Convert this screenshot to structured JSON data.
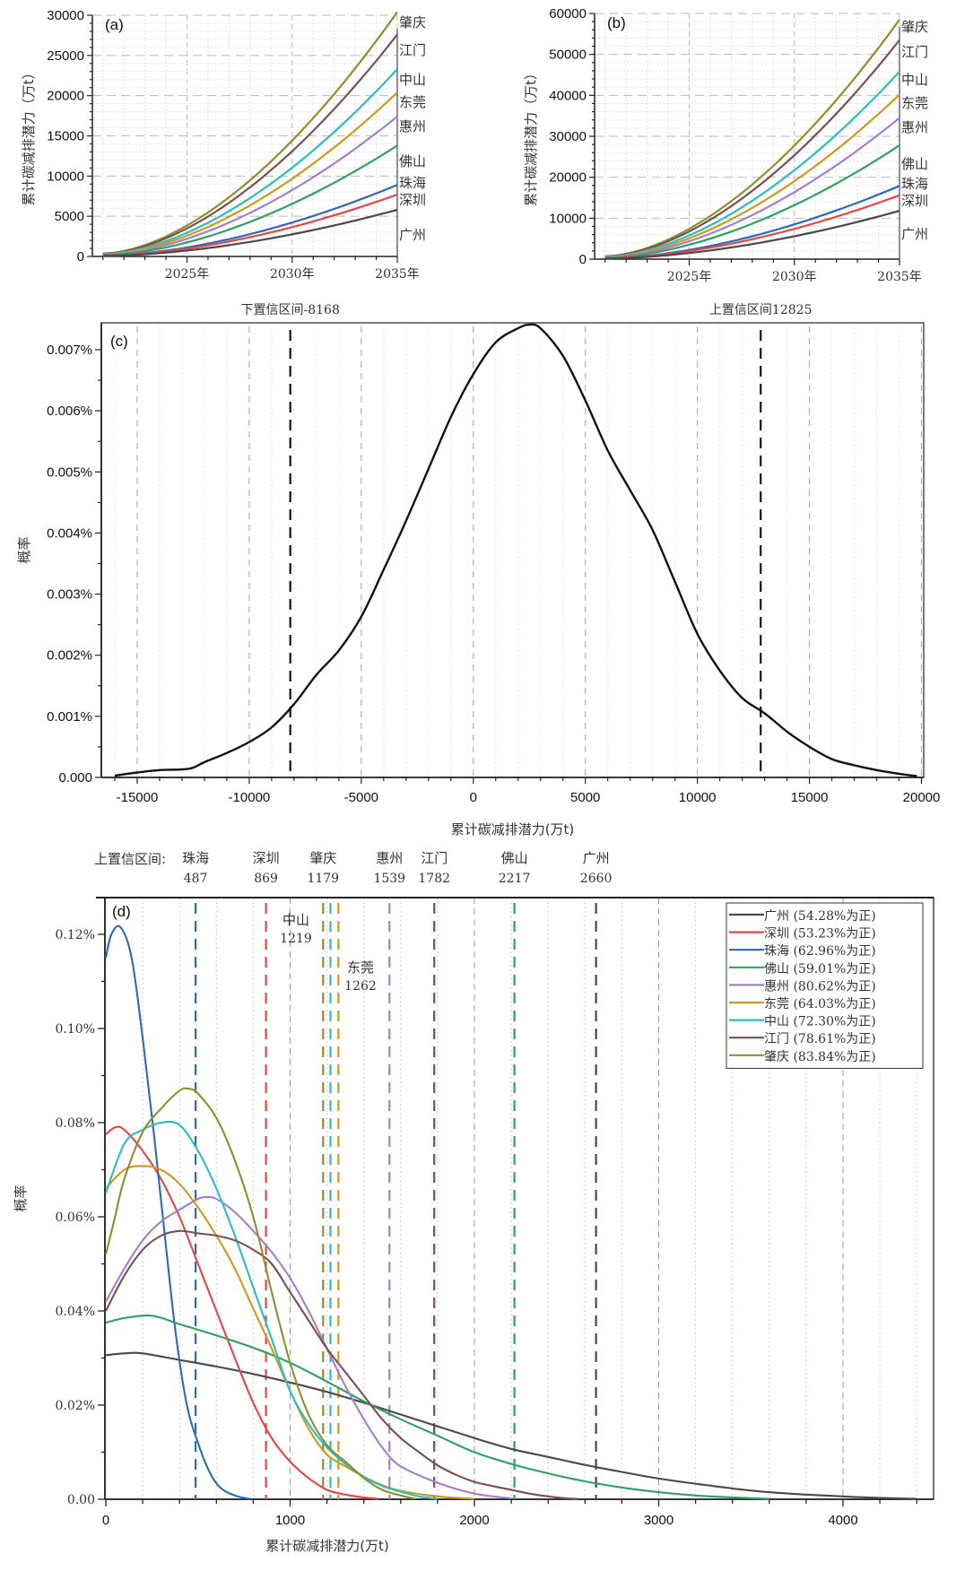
{
  "chart_data": [
    {
      "panel": "a",
      "type": "line",
      "panel_label": "(a)",
      "ylabel": "累计碳减排潜力（万t）",
      "xlabel": "",
      "x_ticks": [
        "2025年",
        "2030年",
        "2035年"
      ],
      "y_ticks": [
        "0",
        "5000",
        "10000",
        "15000",
        "20000",
        "25000",
        "30000"
      ],
      "xlim": [
        2020.5,
        2035
      ],
      "ylim": [
        0,
        30000
      ],
      "x_start": 2021,
      "x_end": 2035,
      "grid": true,
      "series": [
        {
          "name": "肇庆",
          "color": "#8e8f2b",
          "end_value": 30400
        },
        {
          "name": "江门",
          "color": "#7a5050",
          "end_value": 27600
        },
        {
          "name": "中山",
          "color": "#2bbdc0",
          "end_value": 23300
        },
        {
          "name": "东莞",
          "color": "#cf9a1c",
          "end_value": 20400
        },
        {
          "name": "惠州",
          "color": "#a57fcb",
          "end_value": 17400
        },
        {
          "name": "佛山",
          "color": "#2ea25e",
          "end_value": 13800
        },
        {
          "name": "珠海",
          "color": "#2d68bd",
          "end_value": 8900
        },
        {
          "name": "深圳",
          "color": "#e84545",
          "end_value": 7700
        },
        {
          "name": "广州",
          "color": "#4a4a4a",
          "end_value": 5800
        }
      ]
    },
    {
      "panel": "b",
      "type": "line",
      "panel_label": "(b)",
      "ylabel": "累计碳减排潜力（万t）",
      "xlabel": "",
      "x_ticks": [
        "2025年",
        "2030年",
        "2035年"
      ],
      "y_ticks": [
        "0",
        "10000",
        "20000",
        "30000",
        "40000",
        "50000",
        "60000"
      ],
      "xlim": [
        2020.5,
        2035
      ],
      "ylim": [
        0,
        60000
      ],
      "x_start": 2021,
      "x_end": 2035,
      "grid": true,
      "series": [
        {
          "name": "肇庆",
          "color": "#8e8f2b",
          "end_value": 58500
        },
        {
          "name": "江门",
          "color": "#7a5050",
          "end_value": 53500
        },
        {
          "name": "中山",
          "color": "#2bbdc0",
          "end_value": 45800
        },
        {
          "name": "东莞",
          "color": "#cf9a1c",
          "end_value": 40200
        },
        {
          "name": "惠州",
          "color": "#a57fcb",
          "end_value": 34500
        },
        {
          "name": "佛山",
          "color": "#2ea25e",
          "end_value": 27800
        },
        {
          "name": "珠海",
          "color": "#2d68bd",
          "end_value": 17900
        },
        {
          "name": "深圳",
          "color": "#e84545",
          "end_value": 15600
        },
        {
          "name": "广州",
          "color": "#4a4a4a",
          "end_value": 11800
        }
      ]
    },
    {
      "panel": "c",
      "type": "line",
      "panel_label": "(c)",
      "xlabel": "累计碳减排潜力(万t)",
      "ylabel": "概率",
      "x_ticks": [
        "-15000",
        "-10000",
        "-5000",
        "0",
        "5000",
        "10000",
        "15000",
        "20000"
      ],
      "y_ticks": [
        "0.000",
        "0.001%",
        "0.002%",
        "0.003%",
        "0.004%",
        "0.005%",
        "0.006%",
        "0.007%"
      ],
      "xlim": [
        -16500,
        20500
      ],
      "ylim": [
        0,
        0.00743
      ],
      "grid": true,
      "annotations": [
        {
          "label": "下置信区间-8168",
          "x": -8168
        },
        {
          "label": "上置信区间12825",
          "x": 12825
        }
      ],
      "series": [
        {
          "name": "density",
          "color": "#111111",
          "x": [
            -16000,
            -15000,
            -14000,
            -13000,
            -12500,
            -12000,
            -11000,
            -10000,
            -9000,
            -8000,
            -7000,
            -6000,
            -5000,
            -4000,
            -3000,
            -2000,
            -1000,
            0,
            1000,
            2000,
            2500,
            3000,
            4000,
            5000,
            6000,
            7000,
            8000,
            9000,
            10000,
            11000,
            12000,
            13000,
            14000,
            15000,
            16000,
            17000,
            18000,
            19000,
            19800
          ],
          "y": [
            3e-05,
            8e-05,
            0.00012,
            0.00013,
            0.00016,
            0.00025,
            0.0004,
            0.00058,
            0.00082,
            0.0012,
            0.00168,
            0.00208,
            0.00263,
            0.0034,
            0.0042,
            0.00505,
            0.0059,
            0.0066,
            0.00712,
            0.00735,
            0.00741,
            0.00735,
            0.0069,
            0.00617,
            0.00535,
            0.0047,
            0.00405,
            0.0032,
            0.00235,
            0.00175,
            0.0013,
            0.00105,
            0.00075,
            0.0005,
            0.0003,
            0.0002,
            0.00012,
            6e-05,
            2e-05
          ]
        }
      ]
    },
    {
      "panel": "d",
      "type": "line",
      "panel_label": "(d)",
      "xlabel": "累计碳减排潜力(万t)",
      "ylabel": "概率",
      "x_ticks": [
        "0",
        "1000",
        "2000",
        "3000",
        "4000"
      ],
      "y_ticks": [
        "0.00",
        "0.02%",
        "0.04%",
        "0.06%",
        "0.08%",
        "0.10%",
        "0.12%"
      ],
      "xlim": [
        0,
        4800
      ],
      "ylim": [
        0,
        0.1305
      ],
      "grid": true,
      "ci_header": "上置信区间:",
      "legend_position": "top-right",
      "upper_ci": [
        {
          "name": "珠海",
          "value": 487,
          "color": "#2d68bd"
        },
        {
          "name": "深圳",
          "value": 869,
          "color": "#e84545"
        },
        {
          "name": "肇庆",
          "value": 1179,
          "color": "#8e8f2b"
        },
        {
          "name": "中山",
          "value": 1219,
          "color": "#2bbdc0"
        },
        {
          "name": "东莞",
          "value": 1262,
          "color": "#cf9a1c"
        },
        {
          "name": "惠州",
          "value": 1539,
          "color": "#a57fcb"
        },
        {
          "name": "江门",
          "value": 1782,
          "color": "#7a5050"
        },
        {
          "name": "佛山",
          "value": 2217,
          "color": "#2ea25e"
        },
        {
          "name": "广州",
          "value": 2660,
          "color": "#4a4a4a"
        }
      ],
      "series": [
        {
          "name": "广州",
          "legend": "广州 (54.28%为正)",
          "color": "#4a4a4a",
          "x": [
            0,
            100,
            200,
            400,
            600,
            800,
            1000,
            1200,
            1400,
            1600,
            1800,
            2000,
            2200,
            2400,
            2600,
            2800,
            3000,
            3200,
            3400,
            3600,
            3800,
            4000,
            4200,
            4400
          ],
          "y": [
            0.0306,
            0.031,
            0.031,
            0.0296,
            0.0282,
            0.0266,
            0.0248,
            0.0228,
            0.0205,
            0.018,
            0.0155,
            0.013,
            0.0107,
            0.009,
            0.0073,
            0.0058,
            0.0044,
            0.0033,
            0.0023,
            0.0015,
            0.001,
            0.0006,
            0.0003,
            0.0001
          ]
        },
        {
          "name": "深圳",
          "legend": "深圳 (53.23%为正)",
          "color": "#e84545",
          "x": [
            0,
            50,
            100,
            200,
            300,
            400,
            500,
            600,
            700,
            800,
            900,
            1000,
            1100,
            1200,
            1300,
            1400,
            1480
          ],
          "y": [
            0.0775,
            0.079,
            0.0785,
            0.074,
            0.068,
            0.06,
            0.05,
            0.04,
            0.03,
            0.0205,
            0.013,
            0.008,
            0.0045,
            0.002,
            0.001,
            0.0004,
            0.0001
          ]
        },
        {
          "name": "珠海",
          "legend": "珠海 (62.96%为正)",
          "color": "#2d68bd",
          "x": [
            0,
            30,
            80,
            140,
            200,
            260,
            320,
            380,
            440,
            500,
            560,
            620,
            700,
            780
          ],
          "y": [
            0.115,
            0.12,
            0.1215,
            0.115,
            0.098,
            0.078,
            0.056,
            0.035,
            0.02,
            0.012,
            0.006,
            0.0025,
            0.0008,
            0.0001
          ]
        },
        {
          "name": "佛山",
          "legend": "佛山 (59.01%为正)",
          "color": "#2ea25e",
          "x": [
            0,
            100,
            250,
            400,
            600,
            800,
            1000,
            1200,
            1400,
            1600,
            1800,
            2000,
            2200,
            2400,
            2600,
            2800,
            3000,
            3200,
            3400,
            3600
          ],
          "y": [
            0.0375,
            0.0385,
            0.039,
            0.0372,
            0.0348,
            0.0322,
            0.029,
            0.025,
            0.0208,
            0.017,
            0.0135,
            0.01,
            0.0075,
            0.0055,
            0.0038,
            0.0025,
            0.0015,
            0.0008,
            0.0004,
            0.0001
          ]
        },
        {
          "name": "惠州",
          "legend": "惠州 (80.62%为正)",
          "color": "#a57fcb",
          "x": [
            0,
            100,
            200,
            300,
            400,
            500,
            550,
            600,
            700,
            800,
            900,
            1000,
            1100,
            1200,
            1300,
            1400,
            1500,
            1600,
            1800,
            2000,
            2200
          ],
          "y": [
            0.042,
            0.049,
            0.055,
            0.059,
            0.0615,
            0.0638,
            0.0642,
            0.0638,
            0.061,
            0.057,
            0.0525,
            0.047,
            0.04,
            0.032,
            0.024,
            0.017,
            0.011,
            0.007,
            0.0035,
            0.0012,
            0.0002
          ]
        },
        {
          "name": "东莞",
          "legend": "东莞 (64.03%为正)",
          "color": "#cf9a1c",
          "x": [
            0,
            100,
            200,
            300,
            400,
            500,
            600,
            700,
            800,
            900,
            1000,
            1100,
            1200,
            1300,
            1400,
            1500,
            1600,
            1800,
            2000
          ],
          "y": [
            0.066,
            0.07,
            0.0708,
            0.07,
            0.067,
            0.062,
            0.056,
            0.049,
            0.0405,
            0.032,
            0.023,
            0.015,
            0.0095,
            0.007,
            0.0048,
            0.003,
            0.0018,
            0.0006,
            0.0001
          ]
        },
        {
          "name": "中山",
          "legend": "中山 (72.30%为正)",
          "color": "#2bbdc0",
          "x": [
            0,
            100,
            200,
            300,
            400,
            500,
            600,
            700,
            800,
            900,
            1000,
            1100,
            1200,
            1300,
            1400,
            1500,
            1600,
            1700,
            1800
          ],
          "y": [
            0.065,
            0.0755,
            0.0785,
            0.08,
            0.0795,
            0.074,
            0.066,
            0.056,
            0.045,
            0.034,
            0.023,
            0.016,
            0.011,
            0.0075,
            0.0048,
            0.0028,
            0.0016,
            0.0006,
            0.0001
          ]
        },
        {
          "name": "江门",
          "legend": "江门 (78.61%为正)",
          "color": "#7a5050",
          "x": [
            0,
            100,
            200,
            300,
            400,
            500,
            600,
            700,
            800,
            900,
            1000,
            1100,
            1200,
            1300,
            1400,
            1500,
            1600,
            1700,
            1800,
            1900,
            2000,
            2100,
            2200,
            2300,
            2400,
            2500,
            2560
          ],
          "y": [
            0.04,
            0.0475,
            0.053,
            0.056,
            0.057,
            0.0565,
            0.056,
            0.055,
            0.053,
            0.05,
            0.044,
            0.038,
            0.032,
            0.027,
            0.022,
            0.017,
            0.013,
            0.01,
            0.0072,
            0.0052,
            0.0037,
            0.0028,
            0.002,
            0.0012,
            0.0006,
            0.0002,
            0.0001
          ]
        },
        {
          "name": "肇庆",
          "legend": "肇庆 (83.84%为正)",
          "color": "#8e8f2b",
          "x": [
            0,
            50,
            100,
            200,
            300,
            400,
            450,
            500,
            600,
            700,
            800,
            900,
            1000,
            1100,
            1200,
            1300,
            1400,
            1500,
            1600,
            1680
          ],
          "y": [
            0.052,
            0.06,
            0.068,
            0.078,
            0.083,
            0.0868,
            0.0872,
            0.0862,
            0.081,
            0.072,
            0.06,
            0.044,
            0.029,
            0.018,
            0.0115,
            0.008,
            0.0045,
            0.002,
            0.0008,
            0.0001
          ]
        }
      ],
      "label_annotations": [
        {
          "name": "中山",
          "value": "1219",
          "color": "#2bbdc0"
        },
        {
          "name": "东莞",
          "value": "1262",
          "color": "#cf9a1c"
        }
      ]
    }
  ]
}
